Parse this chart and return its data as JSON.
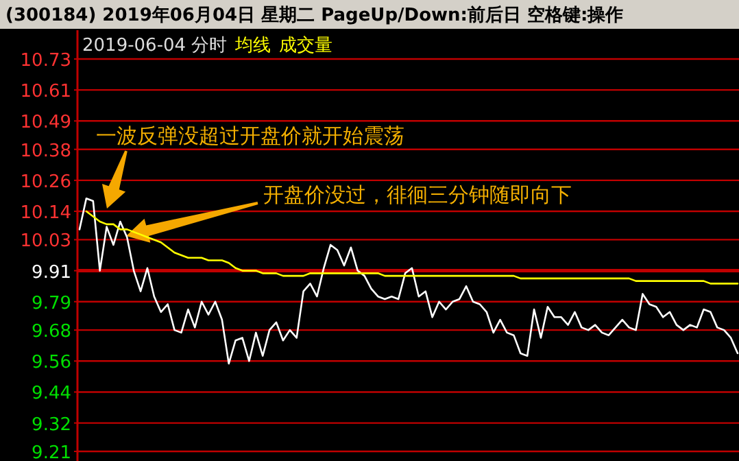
{
  "chart_data": {
    "type": "line",
    "title": "(300184) 2019年06月04日 星期二 PageUp/Down:前后日 空格键:操作",
    "subtitle": "2019-06-04 分时",
    "annotations": [
      "成交量",
      "一波反弹没超过开盘价就开始震荡",
      "开盘价没过，徘徊三分钟随即向下"
    ],
    "categories": [
      null,
      null,
      null,
      null,
      null,
      null,
      null,
      null,
      null,
      null,
      null,
      null,
      null,
      null,
      null,
      null,
      null,
      null,
      null,
      null,
      null,
      null,
      null,
      null,
      null,
      null,
      null,
      null,
      null,
      null,
      null,
      null,
      null,
      null,
      null,
      null,
      null,
      null,
      null,
      null,
      null,
      null,
      null,
      null,
      null,
      null,
      null,
      null,
      null,
      null,
      null,
      null,
      null,
      null,
      null,
      null,
      null,
      null,
      null,
      null,
      null,
      null,
      null,
      null,
      null,
      null,
      null,
      null,
      null,
      null,
      null,
      null,
      null,
      null,
      null,
      null,
      null,
      null,
      null,
      null,
      null,
      null,
      null,
      null,
      null,
      null,
      null,
      null,
      null,
      null,
      null,
      null,
      null,
      null,
      null,
      null,
      null,
      null
    ],
    "series": [
      {
        "color": "#ffffff",
        "values": [
          10.07,
          10.19,
          10.18,
          9.91,
          10.08,
          10.01,
          10.1,
          10.04,
          9.91,
          9.83,
          9.92,
          9.81,
          9.75,
          9.78,
          9.68,
          9.67,
          9.76,
          9.69,
          9.79,
          9.74,
          9.79,
          9.72,
          9.55,
          9.64,
          9.65,
          9.56,
          9.67,
          9.58,
          9.68,
          9.71,
          9.64,
          9.68,
          9.65,
          9.83,
          9.86,
          9.81,
          9.92,
          10.01,
          9.99,
          9.93,
          10.0,
          9.91,
          9.89,
          9.84,
          9.81,
          9.8,
          9.81,
          9.8,
          9.9,
          9.92,
          9.81,
          9.83,
          9.73,
          9.79,
          9.76,
          9.79,
          9.8,
          9.85,
          9.79,
          9.78,
          9.75,
          9.67,
          9.72,
          9.67,
          9.66,
          9.59,
          9.58,
          9.76,
          9.65,
          9.77,
          9.73,
          9.73,
          9.7,
          9.75,
          9.69,
          9.68,
          9.7,
          9.67,
          9.66,
          9.69,
          9.72,
          9.69,
          9.68,
          9.82,
          9.78,
          9.77,
          9.73,
          9.75,
          9.7,
          9.68,
          9.7,
          9.69,
          9.76,
          9.75,
          9.69,
          9.68,
          9.65,
          9.59
        ]
      },
      {
        "name": "均线",
        "color": "#ffff00",
        "values": [
          null,
          10.14,
          10.12,
          10.1,
          10.09,
          10.09,
          10.07,
          10.07,
          10.06,
          10.05,
          10.04,
          10.03,
          10.02,
          10.0,
          9.98,
          9.97,
          9.96,
          9.96,
          9.96,
          9.95,
          9.95,
          9.95,
          9.94,
          9.92,
          9.91,
          9.91,
          9.91,
          9.9,
          9.9,
          9.9,
          9.89,
          9.89,
          9.89,
          9.89,
          9.9,
          9.9,
          9.9,
          9.9,
          9.9,
          9.9,
          9.9,
          9.9,
          9.9,
          9.9,
          9.9,
          9.89,
          9.89,
          9.89,
          9.89,
          9.89,
          9.89,
          9.89,
          9.89,
          9.89,
          9.89,
          9.89,
          9.89,
          9.89,
          9.89,
          9.89,
          9.89,
          9.89,
          9.89,
          9.89,
          9.89,
          9.88,
          9.88,
          9.88,
          9.88,
          9.88,
          9.88,
          9.88,
          9.88,
          9.88,
          9.88,
          9.88,
          9.88,
          9.88,
          9.88,
          9.88,
          9.88,
          9.88,
          9.87,
          9.87,
          9.87,
          9.87,
          9.87,
          9.87,
          9.87,
          9.87,
          9.87,
          9.87,
          9.87,
          9.86,
          9.86,
          9.86,
          9.86,
          9.86
        ]
      }
    ],
    "ylim": [
      9.21,
      10.73
    ],
    "yticks": [
      9.21,
      9.32,
      9.44,
      9.56,
      9.68,
      9.79,
      9.91,
      10.03,
      10.14,
      10.26,
      10.38,
      10.49,
      10.61,
      10.73
    ],
    "tick_labels": "y",
    "grid": "y",
    "ref_lines": [
      {
        "axis": "y",
        "value": 9.91,
        "color": "#c00000"
      }
    ]
  }
}
